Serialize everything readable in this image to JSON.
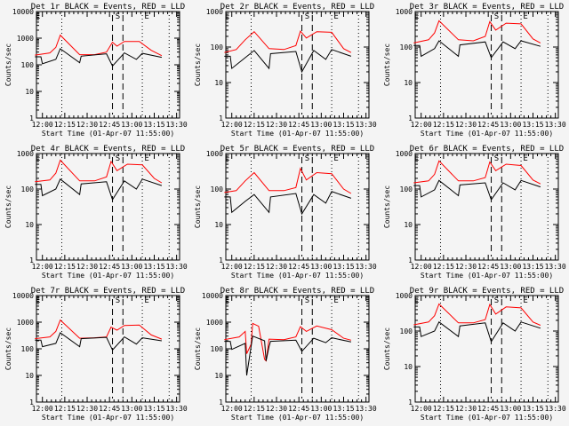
{
  "colors": {
    "background": "#f4f4f4",
    "events": "#000000",
    "lld": "#ff0000",
    "axes": "#000000"
  },
  "chart_data": [
    {
      "type": "line",
      "title": "Det 1r BLACK = Events, RED = LLD",
      "xlabel": "Start Time (01-Apr-07 11:55:00)",
      "ylabel": "Counts/sec",
      "yscale": "log",
      "ylim": [
        1,
        10000
      ],
      "yticks": [
        "1",
        "10",
        "100",
        "1000",
        "10000"
      ],
      "xticks": [
        "12:00",
        "12:15",
        "12:30",
        "12:45",
        "13:00",
        "13:15",
        "13:30"
      ],
      "markers": [
        "E",
        "S",
        "E"
      ],
      "series": [
        {
          "name": "LLD",
          "color": "#ff0000",
          "x": [
            0,
            10,
            14,
            17,
            30,
            40,
            48,
            52,
            55,
            60,
            70,
            78,
            85
          ],
          "y": [
            230,
            280,
            450,
            1300,
            240,
            240,
            300,
            700,
            500,
            750,
            750,
            350,
            220
          ]
        },
        {
          "name": "Events",
          "color": "#000000",
          "x": [
            0,
            4,
            5,
            14,
            17,
            30,
            31,
            48,
            52,
            60,
            68,
            72,
            85
          ],
          "y": [
            200,
            200,
            110,
            160,
            400,
            120,
            210,
            260,
            90,
            280,
            160,
            270,
            190
          ]
        }
      ]
    },
    {
      "type": "line",
      "title": "Det 2r BLACK = Events, RED = LLD",
      "xlabel": "Start Time (01-Apr-07 11:55:00)",
      "ylabel": "Counts/sec",
      "yscale": "log",
      "ylim": [
        1,
        1000
      ],
      "yticks": [
        "1",
        "10",
        "100",
        "1000"
      ],
      "xticks": [
        "12:00",
        "12:15",
        "12:30",
        "12:45",
        "13:00",
        "13:15",
        "13:30"
      ],
      "markers": [
        "E",
        "S",
        "E"
      ],
      "series": [
        {
          "name": "LLD",
          "color": "#ff0000",
          "x": [
            0,
            8,
            14,
            20,
            30,
            40,
            48,
            51,
            55,
            62,
            72,
            80,
            85
          ],
          "y": [
            70,
            85,
            160,
            270,
            90,
            85,
            110,
            280,
            180,
            270,
            260,
            90,
            70
          ]
        },
        {
          "name": "Events",
          "color": "#000000",
          "x": [
            0,
            4,
            5,
            14,
            20,
            30,
            31,
            48,
            52,
            60,
            68,
            72,
            85
          ],
          "y": [
            55,
            55,
            25,
            50,
            80,
            25,
            65,
            75,
            20,
            80,
            45,
            85,
            55
          ]
        }
      ]
    },
    {
      "type": "line",
      "title": "Det 3r BLACK = Events, RED = LLD",
      "xlabel": "Start Time (01-Apr-07 11:55:00)",
      "ylabel": "Counts/sec",
      "yscale": "log",
      "ylim": [
        1,
        1000
      ],
      "yticks": [
        "1",
        "10",
        "100",
        "1000"
      ],
      "xticks": [
        "12:00",
        "12:15",
        "12:30",
        "12:45",
        "13:00",
        "13:15",
        "13:30"
      ],
      "markers": [
        "E",
        "S",
        "E"
      ],
      "series": [
        {
          "name": "LLD",
          "color": "#ff0000",
          "x": [
            0,
            10,
            14,
            17,
            30,
            40,
            48,
            51,
            55,
            62,
            72,
            80,
            85
          ],
          "y": [
            130,
            160,
            250,
            550,
            160,
            150,
            200,
            520,
            300,
            470,
            450,
            170,
            130
          ]
        },
        {
          "name": "Events",
          "color": "#000000",
          "x": [
            0,
            4,
            5,
            14,
            17,
            30,
            31,
            48,
            52,
            60,
            68,
            72,
            85
          ],
          "y": [
            110,
            110,
            55,
            90,
            150,
            55,
            115,
            140,
            50,
            140,
            90,
            150,
            105
          ]
        }
      ]
    },
    {
      "type": "line",
      "title": "Det 4r BLACK = Events, RED = LLD",
      "xlabel": "Start Time (01-Apr-07 11:55:00)",
      "ylabel": "Counts/sec",
      "yscale": "log",
      "ylim": [
        1,
        1000
      ],
      "yticks": [
        "1",
        "10",
        "100",
        "1000"
      ],
      "xticks": [
        "12:00",
        "12:15",
        "12:30",
        "12:45",
        "13:00",
        "13:15",
        "13:30"
      ],
      "markers": [
        "E",
        "S",
        "E"
      ],
      "series": [
        {
          "name": "LLD",
          "color": "#ff0000",
          "x": [
            0,
            10,
            14,
            17,
            30,
            40,
            48,
            51,
            55,
            62,
            72,
            80,
            85
          ],
          "y": [
            160,
            180,
            280,
            650,
            170,
            170,
            220,
            600,
            330,
            500,
            480,
            200,
            150
          ]
        },
        {
          "name": "Events",
          "color": "#000000",
          "x": [
            0,
            4,
            5,
            14,
            17,
            30,
            31,
            48,
            52,
            60,
            68,
            72,
            85
          ],
          "y": [
            135,
            135,
            65,
            100,
            190,
            70,
            140,
            160,
            50,
            170,
            100,
            190,
            125
          ]
        }
      ]
    },
    {
      "type": "line",
      "title": "Det 5r BLACK = Events, RED = LLD",
      "xlabel": "Start Time (01-Apr-07 11:55:00)",
      "ylabel": "Counts/sec",
      "yscale": "log",
      "ylim": [
        1,
        1000
      ],
      "yticks": [
        "1",
        "10",
        "100",
        "1000"
      ],
      "xticks": [
        "12:00",
        "12:15",
        "12:30",
        "12:45",
        "13:00",
        "13:15",
        "13:30"
      ],
      "markers": [
        "E",
        "S",
        "E"
      ],
      "series": [
        {
          "name": "LLD",
          "color": "#ff0000",
          "x": [
            0,
            8,
            14,
            20,
            30,
            40,
            48,
            51,
            55,
            62,
            72,
            80,
            85
          ],
          "y": [
            80,
            90,
            170,
            290,
            90,
            90,
            110,
            380,
            180,
            290,
            270,
            100,
            75
          ]
        },
        {
          "name": "Events",
          "color": "#000000",
          "x": [
            0,
            4,
            5,
            14,
            20,
            30,
            31,
            48,
            52,
            60,
            68,
            72,
            85
          ],
          "y": [
            60,
            60,
            22,
            45,
            70,
            22,
            60,
            75,
            20,
            70,
            40,
            85,
            55
          ]
        }
      ]
    },
    {
      "type": "line",
      "title": "Det 6r BLACK = Events, RED = LLD",
      "xlabel": "Start Time (01-Apr-07 11:55:00)",
      "ylabel": "Counts/sec",
      "yscale": "log",
      "ylim": [
        1,
        1000
      ],
      "yticks": [
        "1",
        "10",
        "100",
        "1000"
      ],
      "xticks": [
        "12:00",
        "12:15",
        "12:30",
        "12:45",
        "13:00",
        "13:15",
        "13:30"
      ],
      "markers": [
        "E",
        "S",
        "E"
      ],
      "series": [
        {
          "name": "LLD",
          "color": "#ff0000",
          "x": [
            0,
            10,
            14,
            17,
            30,
            40,
            48,
            51,
            55,
            62,
            72,
            80,
            85
          ],
          "y": [
            150,
            170,
            260,
            620,
            170,
            170,
            210,
            580,
            330,
            500,
            460,
            180,
            140
          ]
        },
        {
          "name": "Events",
          "color": "#000000",
          "x": [
            0,
            4,
            5,
            14,
            17,
            30,
            31,
            48,
            52,
            60,
            68,
            72,
            85
          ],
          "y": [
            125,
            125,
            60,
            95,
            175,
            65,
            130,
            150,
            50,
            150,
            95,
            175,
            115
          ]
        }
      ]
    },
    {
      "type": "line",
      "title": "Det 7r BLACK = Events, RED = LLD",
      "xlabel": "Start Time (01-Apr-07 11:55:00)",
      "ylabel": "Counts/sec",
      "yscale": "log",
      "ylim": [
        1,
        10000
      ],
      "yticks": [
        "1",
        "10",
        "100",
        "1000",
        "10000"
      ],
      "xticks": [
        "12:00",
        "12:15",
        "12:30",
        "12:45",
        "13:00",
        "13:15",
        "13:30"
      ],
      "markers": [
        "E",
        "S",
        "E"
      ],
      "series": [
        {
          "name": "LLD",
          "color": "#ff0000",
          "x": [
            0,
            10,
            14,
            17,
            30,
            40,
            48,
            51,
            55,
            60,
            70,
            78,
            85
          ],
          "y": [
            240,
            280,
            450,
            1200,
            250,
            260,
            280,
            650,
            500,
            750,
            780,
            330,
            230
          ]
        },
        {
          "name": "Events",
          "color": "#000000",
          "x": [
            0,
            4,
            5,
            14,
            17,
            30,
            31,
            48,
            52,
            60,
            68,
            72,
            85
          ],
          "y": [
            210,
            210,
            120,
            160,
            400,
            120,
            240,
            270,
            90,
            280,
            150,
            260,
            200
          ]
        }
      ]
    },
    {
      "type": "line",
      "title": "Det 8r BLACK = Events, RED = LLD",
      "xlabel": "Start Time (01-Apr-07 11:55:00)",
      "ylabel": "Counts/sec",
      "yscale": "log",
      "ylim": [
        1,
        10000
      ],
      "yticks": [
        "1",
        "10",
        "100",
        "1000",
        "10000"
      ],
      "xticks": [
        "12:00",
        "12:15",
        "12:30",
        "12:45",
        "13:00",
        "13:15",
        "13:30"
      ],
      "markers": [
        "E",
        "S",
        "E"
      ],
      "series": [
        {
          "name": "LLD",
          "color": "#ff0000",
          "x": [
            0,
            10,
            14,
            15,
            18,
            19,
            23,
            27,
            28,
            30,
            40,
            48,
            51,
            55,
            62,
            72,
            80,
            85
          ],
          "y": [
            220,
            280,
            450,
            65,
            150,
            900,
            700,
            40,
            35,
            230,
            220,
            280,
            680,
            450,
            720,
            520,
            250,
            210
          ]
        },
        {
          "name": "Events",
          "color": "#000000",
          "x": [
            0,
            4,
            5,
            14,
            15,
            19,
            27,
            28,
            30,
            31,
            48,
            52,
            60,
            68,
            72,
            85
          ],
          "y": [
            190,
            190,
            95,
            160,
            10,
            300,
            200,
            35,
            120,
            190,
            210,
            80,
            250,
            170,
            260,
            180
          ]
        }
      ]
    },
    {
      "type": "line",
      "title": "Det 9r BLACK = Events, RED = LLD",
      "xlabel": "Start Time (01-Apr-07 11:55:00)",
      "ylabel": "Counts/sec",
      "yscale": "log",
      "ylim": [
        1,
        1000
      ],
      "yticks": [
        "1",
        "10",
        "100",
        "1000"
      ],
      "xticks": [
        "12:00",
        "12:15",
        "12:30",
        "12:45",
        "13:00",
        "13:15",
        "13:30"
      ],
      "markers": [
        "E",
        "S",
        "E"
      ],
      "series": [
        {
          "name": "LLD",
          "color": "#ff0000",
          "x": [
            0,
            10,
            14,
            17,
            30,
            40,
            48,
            51,
            55,
            62,
            72,
            80,
            85
          ],
          "y": [
            150,
            180,
            270,
            580,
            170,
            170,
            210,
            560,
            300,
            480,
            450,
            180,
            145
          ]
        },
        {
          "name": "Events",
          "color": "#000000",
          "x": [
            0,
            4,
            5,
            14,
            17,
            30,
            31,
            48,
            52,
            60,
            68,
            72,
            85
          ],
          "y": [
            130,
            130,
            70,
            100,
            180,
            70,
            140,
            170,
            50,
            170,
            100,
            180,
            120
          ]
        }
      ]
    }
  ]
}
